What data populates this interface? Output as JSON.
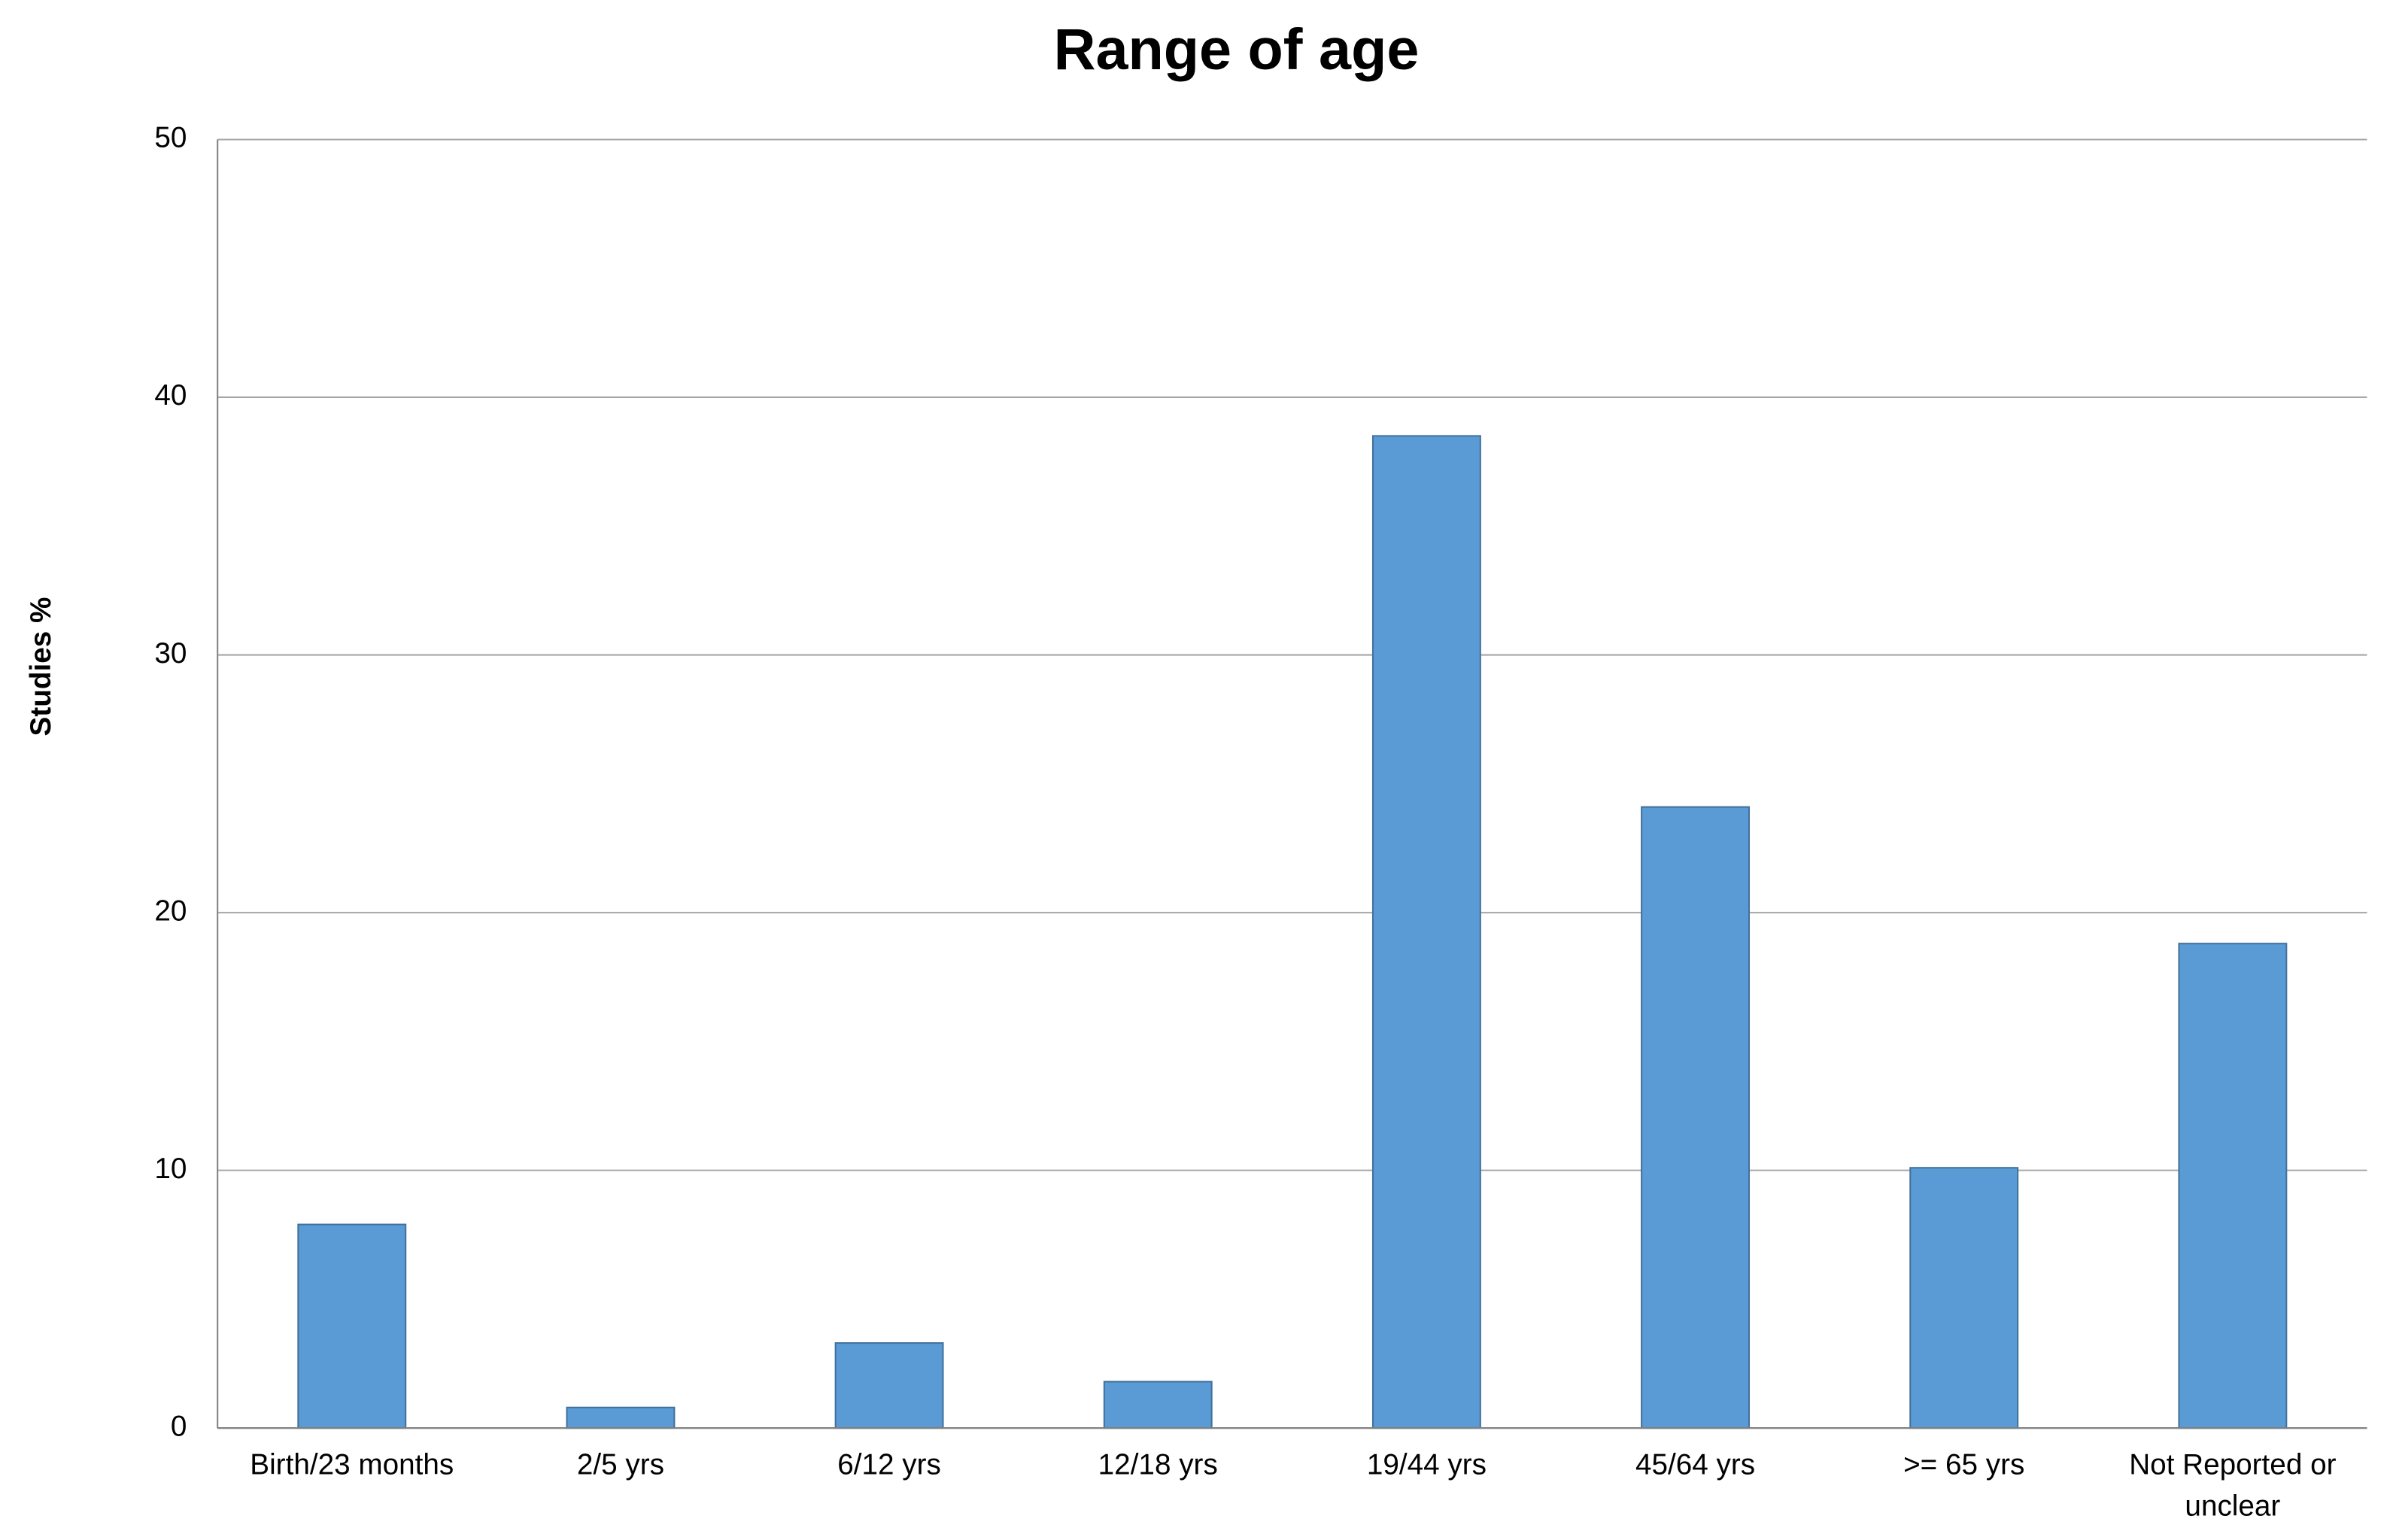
{
  "chart_data": {
    "type": "bar",
    "title": "Range of age",
    "y_label": "Studies %",
    "categories": [
      "Birth/23 months",
      "2/5 yrs",
      "6/12 yrs",
      "12/18 yrs",
      "19/44 yrs",
      "45/64 yrs",
      ">= 65 yrs",
      "Not Reported or unclear"
    ],
    "values": [
      7.9,
      0.8,
      3.3,
      1.8,
      38.5,
      24.1,
      10.1,
      18.8
    ],
    "color": "#5b9bd5",
    "ylim": [
      0,
      50
    ],
    "yticks": [
      0,
      10,
      20,
      30,
      40,
      50
    ],
    "grid": true
  }
}
